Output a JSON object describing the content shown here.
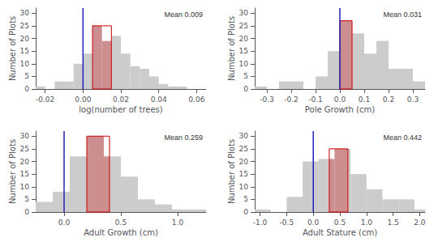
{
  "chart_data": [
    {
      "type": "histogram",
      "annotation": "Mean 0.009",
      "xlabel": "log(number of trees)",
      "ylabel": "Number of Plots",
      "bins": [
        -0.025,
        -0.02,
        -0.015,
        -0.01,
        -0.005,
        0.0,
        0.005,
        0.01,
        0.015,
        0.02,
        0.025,
        0.03,
        0.035,
        0.04,
        0.045,
        0.05,
        0.055,
        0.06
      ],
      "values": [
        1,
        0,
        3,
        3,
        10,
        14,
        25,
        19,
        21,
        14,
        9,
        8,
        5,
        2,
        1,
        1,
        0
      ],
      "color": "#cccccc",
      "ci": {
        "left": 0.005,
        "right": 0.015,
        "height": 25,
        "color": "#cc0000"
      },
      "vline": {
        "x": 0.0,
        "color": "#2222bb"
      },
      "xlim": [
        -0.025,
        0.065
      ],
      "xticks": [
        -0.02,
        {
          "value": 0.0,
          "label": "0.00"
        },
        0.02,
        0.04,
        0.06
      ],
      "ylim": [
        0,
        32
      ],
      "yticks": [
        0,
        5,
        10,
        15,
        20,
        25,
        30
      ],
      "grid": false
    },
    {
      "type": "histogram",
      "annotation": "Mean 0.031",
      "xlabel": "Pole Growth (cm)",
      "ylabel": "Number of Plots",
      "bins": [
        -0.35,
        -0.3,
        -0.25,
        -0.2,
        -0.15,
        -0.1,
        -0.05,
        0.0,
        0.05,
        0.1,
        0.15,
        0.2,
        0.25,
        0.3,
        0.35
      ],
      "values": [
        1,
        0,
        3,
        3,
        0,
        5,
        15,
        27,
        22,
        14,
        19,
        8,
        8,
        3
      ],
      "color": "#cccccc",
      "ci": {
        "left": 0.0,
        "right": 0.05,
        "height": 27,
        "color": "#cc0000"
      },
      "vline": {
        "x": 0.0,
        "color": "#2222bb"
      },
      "xlim": [
        -0.35,
        0.35
      ],
      "xticks": [
        -0.3,
        -0.2,
        -0.1,
        {
          "value": 0.0,
          "label": "0.0"
        },
        0.1,
        0.2,
        0.3
      ],
      "ylim": [
        0,
        32
      ],
      "yticks": [
        0,
        5,
        10,
        15,
        20,
        25,
        30
      ],
      "grid": false
    },
    {
      "type": "histogram",
      "annotation": "Mean 0.259",
      "xlabel": "Adult Growth (cm)",
      "ylabel": "Number of Plots",
      "bins": [
        -0.25,
        -0.1,
        0.05,
        0.2,
        0.35,
        0.5,
        0.65,
        0.8,
        0.95,
        1.1,
        1.25
      ],
      "values": [
        4,
        8,
        22,
        30,
        22,
        14,
        5,
        3,
        1,
        1
      ],
      "color": "#cccccc",
      "ci": {
        "left": 0.2,
        "right": 0.4,
        "height": 30,
        "color": "#cc0000"
      },
      "vline": {
        "x": 0.0,
        "color": "#2222bb"
      },
      "xlim": [
        -0.25,
        1.25
      ],
      "xticks": [
        {
          "value": 0.0,
          "label": "0.0"
        },
        0.5,
        {
          "value": 1.0,
          "label": "1.0"
        }
      ],
      "ylim": [
        0,
        32
      ],
      "yticks": [
        0,
        5,
        10,
        15,
        20,
        25,
        30
      ],
      "grid": false
    },
    {
      "type": "histogram",
      "annotation": "Mean 0.442",
      "xlabel": "Adult Stature (cm)",
      "ylabel": "Number of Plots",
      "bins": [
        -1.1,
        -0.8,
        -0.5,
        -0.2,
        0.1,
        0.4,
        0.7,
        1.0,
        1.3,
        1.6,
        1.9,
        2.1
      ],
      "values": [
        1,
        0,
        6,
        20,
        21,
        25,
        15,
        9,
        5,
        5,
        1
      ],
      "color": "#cccccc",
      "ci": {
        "left": 0.3,
        "right": 0.65,
        "height": 25,
        "color": "#cc0000"
      },
      "vline": {
        "x": 0.0,
        "color": "#2222bb"
      },
      "xlim": [
        -1.1,
        2.1
      ],
      "xticks": [
        {
          "value": -1.0,
          "label": "-1.0"
        },
        -0.5,
        {
          "value": 0.0,
          "label": "0.0"
        },
        0.5,
        {
          "value": 1.0,
          "label": "1.0"
        },
        1.5,
        {
          "value": 2.0,
          "label": "2.0"
        }
      ],
      "ylim": [
        0,
        32
      ],
      "yticks": [
        0,
        5,
        10,
        15,
        20,
        25,
        30
      ],
      "grid": false
    }
  ]
}
